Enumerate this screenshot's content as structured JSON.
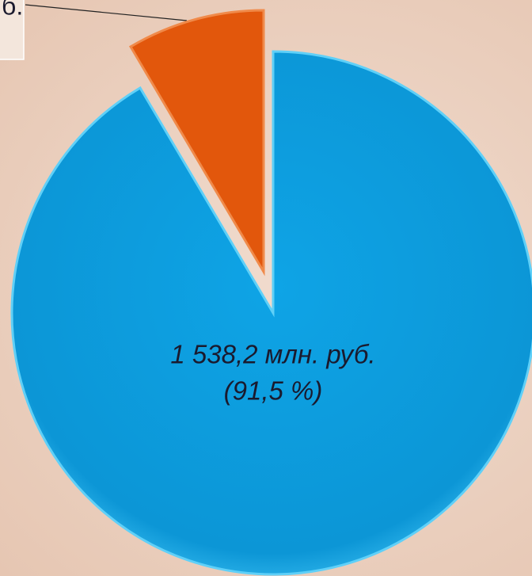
{
  "chart_data": {
    "type": "pie",
    "labels": [
      "1 538,2 млн. руб.",
      null
    ],
    "values": [
      91.5,
      8.5
    ],
    "value_labels": [
      "(91,5 %)",
      null
    ],
    "colors": [
      "#0ea2e2",
      "#e2570c"
    ],
    "annotations": [
      {
        "text": "б."
      }
    ]
  }
}
